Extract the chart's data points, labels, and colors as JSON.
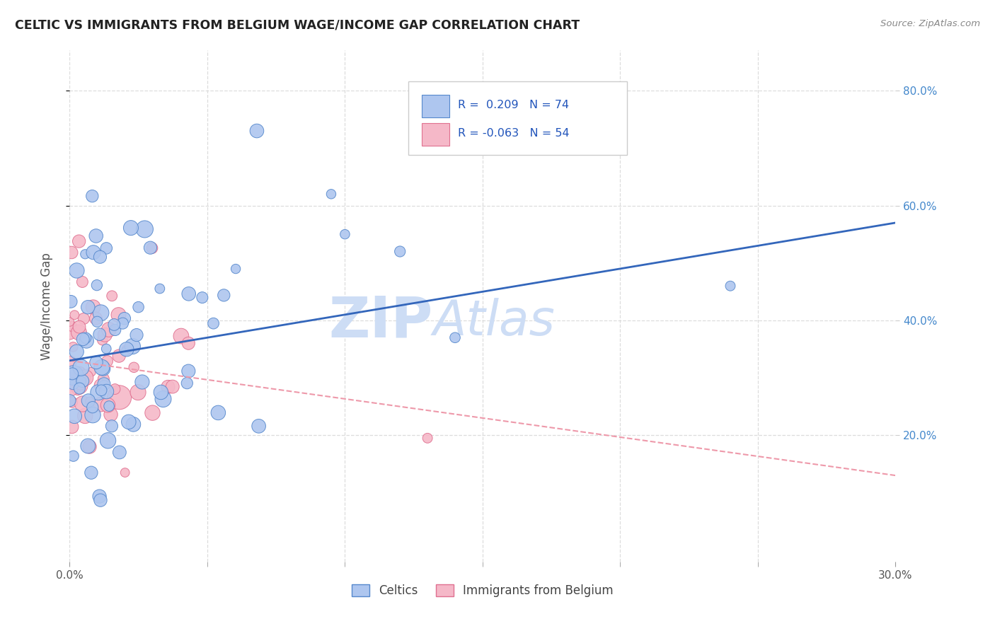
{
  "title": "CELTIC VS IMMIGRANTS FROM BELGIUM WAGE/INCOME GAP CORRELATION CHART",
  "source": "Source: ZipAtlas.com",
  "ylabel": "Wage/Income Gap",
  "xlim": [
    0.0,
    0.3
  ],
  "ylim": [
    -0.02,
    0.87
  ],
  "xticklabels_show": [
    "0.0%",
    "30.0%"
  ],
  "xticklabels_show_pos": [
    0.0,
    0.3
  ],
  "xticks_minor": [
    0.05,
    0.1,
    0.15,
    0.2,
    0.25
  ],
  "yticks_right": [
    0.2,
    0.4,
    0.6,
    0.8
  ],
  "yticklabels_right": [
    "20.0%",
    "40.0%",
    "60.0%",
    "80.0%"
  ],
  "celtic_color": "#aec6ef",
  "celtic_edge_color": "#5588cc",
  "immigrant_color": "#f5b8c8",
  "immigrant_edge_color": "#e07090",
  "celtic_R": 0.209,
  "celtic_N": 74,
  "immigrant_R": -0.063,
  "immigrant_N": 54,
  "legend_label_celtic": "Celtics",
  "legend_label_immigrant": "Immigrants from Belgium",
  "watermark": "ZIPAtlas",
  "watermark_color": "#cdddf5",
  "trend_celtic_color": "#3366bb",
  "trend_immigrant_color": "#ee99aa",
  "trend_celtic_y0": 0.33,
  "trend_celtic_y1": 0.57,
  "trend_immigrant_y0": 0.33,
  "trend_immigrant_y1": 0.13,
  "background_color": "#ffffff",
  "grid_color": "#dddddd"
}
